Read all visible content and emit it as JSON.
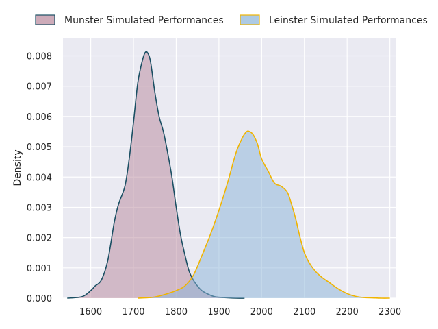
{
  "chart_data": {
    "type": "area",
    "title": "",
    "xlabel": "",
    "ylabel": "Density",
    "xlim": [
      1535,
      2315
    ],
    "ylim": [
      0,
      0.0086
    ],
    "x_ticks": [
      1600,
      1700,
      1800,
      1900,
      2000,
      2100,
      2200,
      2300
    ],
    "y_ticks": [
      0.0,
      0.001,
      0.002,
      0.003,
      0.004,
      0.005,
      0.006,
      0.007,
      0.008
    ],
    "grid": true,
    "legend_position": "top, above plot",
    "series": [
      {
        "name": "Munster Simulated Performances",
        "fill": "#b8879b",
        "line": "#1a4f63",
        "x": [
          1545,
          1580,
          1600,
          1610,
          1625,
          1640,
          1655,
          1665,
          1680,
          1690,
          1700,
          1710,
          1720,
          1727,
          1733,
          1740,
          1750,
          1760,
          1770,
          1780,
          1790,
          1800,
          1810,
          1820,
          1830,
          1840,
          1850,
          1860,
          1875,
          1890,
          1910,
          1940,
          1960
        ],
        "y": [
          0,
          5e-05,
          0.00025,
          0.0004,
          0.0006,
          0.00125,
          0.0025,
          0.0031,
          0.0037,
          0.0046,
          0.0058,
          0.0071,
          0.0078,
          0.0081,
          0.0081,
          0.0078,
          0.0068,
          0.006,
          0.0055,
          0.0048,
          0.004,
          0.003,
          0.0021,
          0.00145,
          0.0009,
          0.0006,
          0.0004,
          0.00025,
          0.00013,
          5e-05,
          2e-05,
          0,
          0
        ]
      },
      {
        "name": "Leinster Simulated Performances",
        "fill": "#8ab4d8",
        "line": "#f0b400",
        "x": [
          1710,
          1740,
          1760,
          1780,
          1800,
          1820,
          1840,
          1860,
          1880,
          1900,
          1920,
          1940,
          1955,
          1965,
          1972,
          1980,
          1990,
          2000,
          2015,
          2030,
          2045,
          2060,
          2070,
          2080,
          2090,
          2100,
          2110,
          2125,
          2140,
          2160,
          2180,
          2200,
          2220,
          2240,
          2260,
          2280,
          2300
        ],
        "y": [
          0,
          2e-05,
          7e-05,
          0.00015,
          0.00025,
          0.0004,
          0.00075,
          0.0014,
          0.0021,
          0.0029,
          0.0038,
          0.0048,
          0.0053,
          0.0055,
          0.0055,
          0.0054,
          0.0051,
          0.0046,
          0.0042,
          0.0038,
          0.0037,
          0.0035,
          0.0031,
          0.0026,
          0.002,
          0.0015,
          0.0012,
          0.0009,
          0.0007,
          0.0005,
          0.0003,
          0.00015,
          6e-05,
          2e-05,
          1e-05,
          0,
          0
        ]
      }
    ]
  }
}
